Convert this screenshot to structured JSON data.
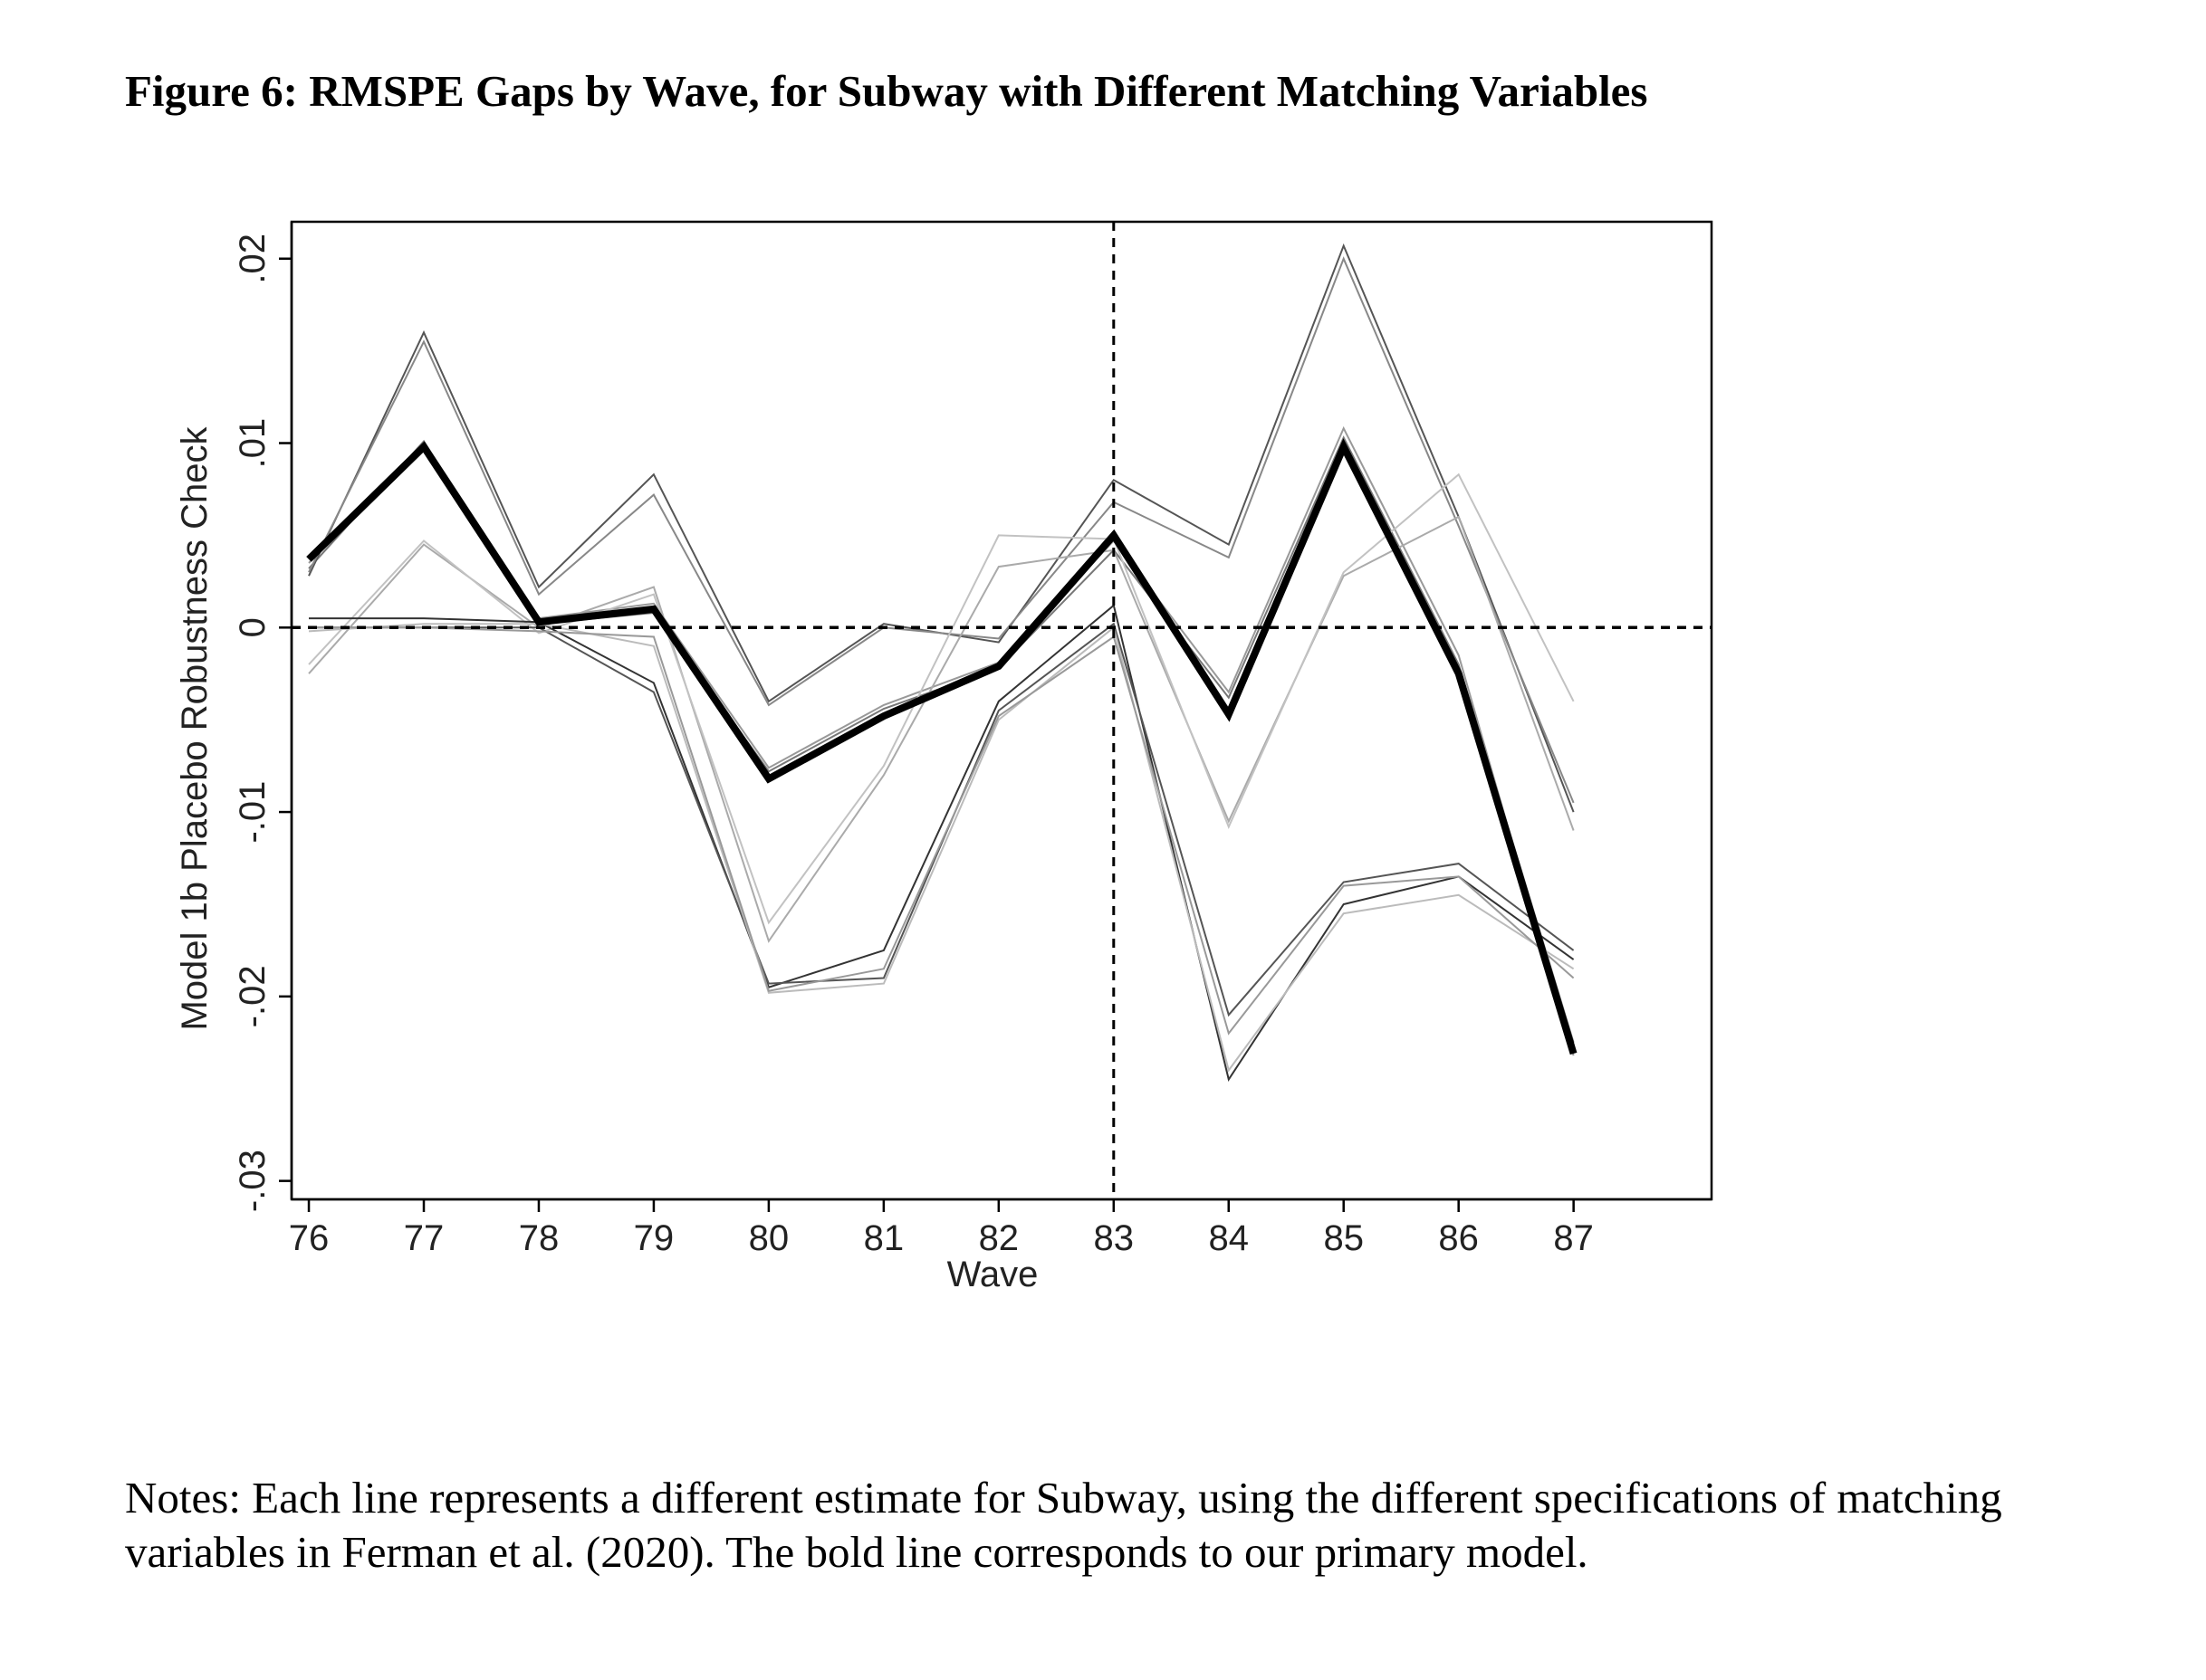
{
  "figure": {
    "title": "Figure 6: RMSPE Gaps by Wave, for Subway with Different Matching Variables",
    "notes": "Notes: Each line represents a different estimate for Subway, using the different specifications of matching variables in Ferman et al. (2020). The bold line corresponds to our primary model."
  },
  "chart_data": {
    "type": "line",
    "title": "",
    "xlabel": "Wave",
    "ylabel": "Model 1b Placebo Robustness Check",
    "x": [
      76,
      77,
      78,
      79,
      80,
      81,
      82,
      83,
      84,
      85,
      86,
      87
    ],
    "x_tick_labels": [
      "76",
      "77",
      "78",
      "79",
      "80",
      "81",
      "82",
      "83",
      "84",
      "85",
      "86",
      "87"
    ],
    "y_ticks": [
      -0.03,
      -0.02,
      -0.01,
      0,
      0.01,
      0.02
    ],
    "y_tick_labels": [
      "-.03",
      "-.02",
      "-.01",
      "0",
      ".01",
      ".02"
    ],
    "ylim": [
      -0.031,
      0.022
    ],
    "xlim": [
      75.85,
      88.2
    ],
    "grid": false,
    "legend": "none",
    "reference_lines": {
      "x": 83,
      "y": 0,
      "style": "dashed"
    },
    "series": [
      {
        "values": [
          0.0032,
          0.0101,
          0.0002,
          0.0008,
          -0.0078,
          -0.0044,
          -0.0022,
          0.0042,
          -0.0038,
          0.0103,
          -0.002,
          -0.0225
        ],
        "color": "#777777",
        "width": 2
      },
      {
        "values": [
          0.0035,
          0.0098,
          0.0005,
          0.0013,
          -0.0076,
          -0.0042,
          -0.0019,
          0.0047,
          -0.0035,
          0.0108,
          -0.0015,
          -0.0232
        ],
        "color": "#999999",
        "width": 2
      },
      {
        "values": [
          0.0028,
          0.016,
          0.0022,
          0.0083,
          -0.004,
          0.0002,
          -0.0008,
          0.008,
          0.0045,
          0.0207,
          0.006,
          -0.01
        ],
        "color": "#555555",
        "width": 2
      },
      {
        "values": [
          0.003,
          0.0155,
          0.0018,
          0.0072,
          -0.0042,
          0.0,
          -0.0006,
          0.0068,
          0.0038,
          0.02,
          0.0055,
          -0.0095
        ],
        "color": "#888888",
        "width": 2
      },
      {
        "values": [
          -0.0025,
          0.0045,
          0.0,
          0.0022,
          -0.017,
          -0.008,
          0.0033,
          0.0042,
          -0.0105,
          0.0028,
          0.006,
          -0.011
        ],
        "color": "#aaaaaa",
        "width": 2
      },
      {
        "values": [
          -0.002,
          0.0047,
          -0.0003,
          0.0018,
          -0.016,
          -0.0075,
          0.005,
          0.0048,
          -0.0108,
          0.003,
          0.0083,
          -0.004
        ],
        "color": "#c2c2c2",
        "width": 2
      },
      {
        "values": [
          0.0005,
          0.0005,
          0.0003,
          -0.003,
          -0.0195,
          -0.0175,
          -0.004,
          0.0012,
          -0.0245,
          -0.015,
          -0.0135,
          -0.018
        ],
        "color": "#333333",
        "width": 2
      },
      {
        "values": [
          0.0,
          0.0,
          0.0,
          -0.0035,
          -0.0193,
          -0.019,
          -0.0045,
          0.0002,
          -0.021,
          -0.0138,
          -0.0128,
          -0.0175
        ],
        "color": "#555555",
        "width": 2
      },
      {
        "values": [
          -0.0002,
          0.0002,
          0.0002,
          -0.001,
          -0.0198,
          -0.0193,
          -0.005,
          0.0,
          -0.024,
          -0.0155,
          -0.0145,
          -0.0185
        ],
        "color": "#bbbbbb",
        "width": 2
      },
      {
        "values": [
          0.0,
          0.0,
          -0.0002,
          -0.0005,
          -0.0197,
          -0.0185,
          -0.0048,
          -0.0005,
          -0.022,
          -0.014,
          -0.0135,
          -0.019
        ],
        "color": "#999999",
        "width": 2
      },
      {
        "values": [
          0.0037,
          0.0098,
          0.0003,
          0.001,
          -0.0082,
          -0.0048,
          -0.0021,
          0.005,
          -0.0047,
          0.0098,
          -0.0025,
          -0.0231
        ],
        "color": "#000000",
        "width": 8
      }
    ]
  }
}
